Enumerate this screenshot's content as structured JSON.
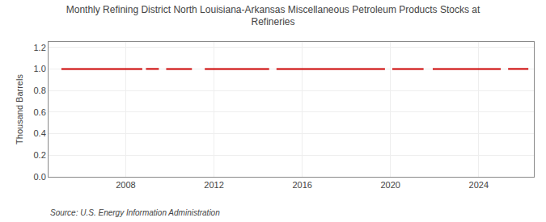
{
  "chart_data": {
    "type": "line",
    "title": "Monthly Refining District North Louisiana-Arkansas Miscellaneous Petroleum Products Stocks at\nRefineries",
    "ylabel": "Thousand Barrels",
    "annotations": [
      "Source: U.S. Energy Information Administration"
    ],
    "color": "#cc0000",
    "grid": true,
    "xlim": [
      2004.5,
      2026.5
    ],
    "xticks": [
      2008,
      2012,
      2016,
      2020,
      2024
    ],
    "ylim": [
      0.0,
      1.25
    ],
    "yticks": [
      {
        "value": 0.0,
        "label": "0.0"
      },
      0.2,
      0.4,
      0.6,
      0.8,
      {
        "value": 1.0,
        "label": "1.0"
      },
      1.2
    ],
    "x": [
      2005.083,
      2005.1663,
      2005.2497,
      2005.333,
      2005.4163,
      2005.4997,
      2005.583,
      2005.6663,
      2005.7497,
      2005.833,
      2005.9163,
      2005.9997,
      2006.083,
      2006.1663,
      2006.2497,
      2006.333,
      2006.4163,
      2006.4997,
      2006.583,
      2006.6663,
      2006.7497,
      2006.833,
      2006.9163,
      2006.9997,
      2007.083,
      2007.1663,
      2007.2497,
      2007.333,
      2007.4163,
      2007.4997,
      2007.583,
      2007.6663,
      2007.7497,
      2007.833,
      2007.9163,
      2007.9997,
      2008.083,
      2008.1663,
      2008.2497,
      2008.333,
      2008.4163,
      2008.4997,
      2008.583,
      2008.6663,
      2008.7497,
      2008.833,
      2008.9163,
      2008.9997,
      2009.083,
      2009.1663,
      2009.2497,
      2009.333,
      2009.4163,
      2009.4997,
      2009.583,
      2009.6663,
      2009.7497,
      2009.833,
      2009.9163,
      2009.9997,
      2010.083,
      2010.1663,
      2010.2497,
      2010.333,
      2010.4163,
      2010.4997,
      2010.583,
      2010.6663,
      2010.7497,
      2010.833,
      2010.9163,
      2010.9997,
      2011.083,
      2011.1663,
      2011.2497,
      2011.333,
      2011.4163,
      2011.4997,
      2011.583,
      2011.6663,
      2011.7497,
      2011.833,
      2011.9163,
      2011.9997,
      2012.083,
      2012.1663,
      2012.2497,
      2012.333,
      2012.4163,
      2012.4997,
      2012.583,
      2012.6663,
      2012.7497,
      2012.833,
      2012.9163,
      2012.9997,
      2013.083,
      2013.1663,
      2013.2497,
      2013.333,
      2013.4163,
      2013.4997,
      2013.583,
      2013.6663,
      2013.7497,
      2013.833,
      2013.9163,
      2013.9997,
      2014.083,
      2014.1663,
      2014.2497,
      2014.333,
      2014.4163,
      2014.4997,
      2014.583,
      2014.6663,
      2014.7497,
      2014.833,
      2014.9163,
      2014.9997,
      2015.083,
      2015.1663,
      2015.2497,
      2015.333,
      2015.4163,
      2015.4997,
      2015.583,
      2015.6663,
      2015.7497,
      2015.833,
      2015.9163,
      2015.9997,
      2016.083,
      2016.1663,
      2016.2497,
      2016.333,
      2016.4163,
      2016.4997,
      2016.583,
      2016.6663,
      2016.7497,
      2016.833,
      2016.9163,
      2016.9997,
      2017.083,
      2017.1663,
      2017.2497,
      2017.333,
      2017.4163,
      2017.4997,
      2017.583,
      2017.6663,
      2017.7497,
      2017.833,
      2017.9163,
      2017.9997,
      2018.083,
      2018.1663,
      2018.2497,
      2018.333,
      2018.4163,
      2018.4997,
      2018.583,
      2018.6663,
      2018.7497,
      2018.833,
      2018.9163,
      2018.9997,
      2019.083,
      2019.1663,
      2019.2497,
      2019.333,
      2019.4163,
      2019.4997,
      2019.583,
      2019.6663,
      2019.7497,
      2019.833,
      2019.9163,
      2019.9997,
      2020.083,
      2020.1663,
      2020.2497,
      2020.333,
      2020.4163,
      2020.4997,
      2020.583,
      2020.6663,
      2020.7497,
      2020.833,
      2020.9163,
      2020.9997,
      2021.083,
      2021.1663,
      2021.2497,
      2021.333,
      2021.4163,
      2021.4997,
      2021.583,
      2021.6663,
      2021.7497,
      2021.833,
      2021.9163,
      2021.9997,
      2022.083,
      2022.1663,
      2022.2497,
      2022.333,
      2022.4163,
      2022.4997,
      2022.583,
      2022.6663,
      2022.7497,
      2022.833,
      2022.9163,
      2022.9997,
      2023.083,
      2023.1663,
      2023.2497,
      2023.333,
      2023.4163,
      2023.4997,
      2023.583,
      2023.6663,
      2023.7497,
      2023.833,
      2023.9163,
      2023.9997,
      2024.083,
      2024.1663,
      2024.2497,
      2024.333,
      2024.4163,
      2024.4997,
      2024.583,
      2024.6663,
      2024.7497,
      2024.833,
      2024.9163,
      2024.9997,
      2025.083,
      2025.1663,
      2025.2497,
      2025.333,
      2025.4163,
      2025.4997,
      2025.583,
      2025.6663,
      2025.7497,
      2025.833,
      2025.9163,
      2025.9997,
      2026.083,
      2026.1663,
      2026.2497
    ],
    "values": [
      1.0,
      1.0,
      1.0,
      1.0,
      1.0,
      1.0,
      1.0,
      1.0,
      1.0,
      1.0,
      1.0,
      1.0,
      1.0,
      1.0,
      1.0,
      1.0,
      1.0,
      1.0,
      1.0,
      1.0,
      1.0,
      1.0,
      1.0,
      1.0,
      1.0,
      1.0,
      1.0,
      1.0,
      1.0,
      1.0,
      1.0,
      1.0,
      1.0,
      1.0,
      1.0,
      1.0,
      1.0,
      1.0,
      1.0,
      1.0,
      1.0,
      1.0,
      1.0,
      1.0,
      1.0,
      null,
      1.0,
      1.0,
      1.0,
      1.0,
      1.0,
      1.0,
      1.0,
      1.0,
      null,
      null,
      null,
      1.0,
      1.0,
      1.0,
      1.0,
      1.0,
      1.0,
      1.0,
      1.0,
      1.0,
      1.0,
      1.0,
      1.0,
      1.0,
      1.0,
      1.0,
      null,
      null,
      null,
      null,
      null,
      null,
      1.0,
      1.0,
      1.0,
      1.0,
      1.0,
      1.0,
      1.0,
      1.0,
      1.0,
      1.0,
      1.0,
      1.0,
      1.0,
      1.0,
      1.0,
      1.0,
      1.0,
      1.0,
      1.0,
      1.0,
      1.0,
      1.0,
      1.0,
      1.0,
      1.0,
      1.0,
      1.0,
      1.0,
      1.0,
      1.0,
      1.0,
      1.0,
      1.0,
      1.0,
      1.0,
      1.0,
      null,
      null,
      null,
      1.0,
      1.0,
      1.0,
      1.0,
      1.0,
      1.0,
      1.0,
      1.0,
      1.0,
      1.0,
      1.0,
      1.0,
      1.0,
      1.0,
      1.0,
      1.0,
      1.0,
      1.0,
      1.0,
      1.0,
      1.0,
      1.0,
      1.0,
      1.0,
      1.0,
      1.0,
      1.0,
      1.0,
      1.0,
      1.0,
      1.0,
      1.0,
      1.0,
      1.0,
      1.0,
      1.0,
      1.0,
      1.0,
      1.0,
      1.0,
      1.0,
      1.0,
      1.0,
      1.0,
      1.0,
      1.0,
      1.0,
      1.0,
      1.0,
      1.0,
      1.0,
      1.0,
      1.0,
      1.0,
      1.0,
      1.0,
      1.0,
      1.0,
      1.0,
      1.0,
      null,
      null,
      null,
      1.0,
      1.0,
      1.0,
      1.0,
      1.0,
      1.0,
      1.0,
      1.0,
      1.0,
      1.0,
      1.0,
      1.0,
      1.0,
      1.0,
      1.0,
      1.0,
      1.0,
      1.0,
      null,
      null,
      null,
      null,
      1.0,
      1.0,
      1.0,
      1.0,
      1.0,
      1.0,
      1.0,
      1.0,
      1.0,
      1.0,
      1.0,
      1.0,
      1.0,
      1.0,
      1.0,
      1.0,
      1.0,
      1.0,
      1.0,
      1.0,
      1.0,
      1.0,
      1.0,
      1.0,
      1.0,
      1.0,
      1.0,
      1.0,
      1.0,
      1.0,
      1.0,
      1.0,
      1.0,
      1.0,
      1.0,
      1.0,
      1.0,
      1.0,
      null,
      null,
      null,
      1.0,
      1.0,
      1.0,
      1.0,
      1.0,
      1.0,
      1.0,
      1.0,
      1.0,
      1.0,
      1.0,
      1.0
    ]
  }
}
